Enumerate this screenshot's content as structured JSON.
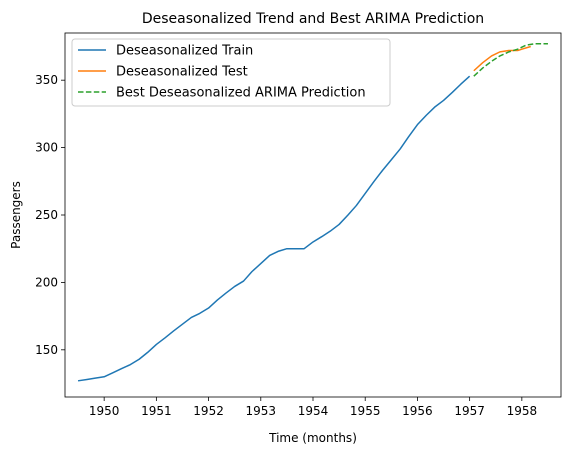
{
  "chart_data": {
    "type": "line",
    "title": "Deseasonalized Trend and Best ARIMA Prediction",
    "xlabel": "Time (months)",
    "ylabel": "Passengers",
    "xlim": [
      1949.25,
      1958.75
    ],
    "ylim": [
      115,
      385
    ],
    "x_ticks": [
      1950,
      1951,
      1952,
      1953,
      1954,
      1955,
      1956,
      1957,
      1958
    ],
    "x_tick_labels": [
      "1950",
      "1951",
      "1952",
      "1953",
      "1954",
      "1955",
      "1956",
      "1957",
      "1958"
    ],
    "y_ticks": [
      150,
      200,
      250,
      300,
      350
    ],
    "y_tick_labels": [
      "150",
      "200",
      "250",
      "300",
      "350"
    ],
    "grid": false,
    "legend_position": "top-left",
    "series": [
      {
        "name": "Deseasonalized Train",
        "color": "#1f77b4",
        "style": "solid",
        "x": [
          1949.5,
          1949.67,
          1949.83,
          1950.0,
          1950.17,
          1950.33,
          1950.5,
          1950.67,
          1950.83,
          1951.0,
          1951.17,
          1951.33,
          1951.5,
          1951.67,
          1951.83,
          1952.0,
          1952.17,
          1952.33,
          1952.5,
          1952.67,
          1952.83,
          1953.0,
          1953.17,
          1953.33,
          1953.5,
          1953.67,
          1953.83,
          1954.0,
          1954.17,
          1954.33,
          1954.5,
          1954.67,
          1954.83,
          1955.0,
          1955.17,
          1955.33,
          1955.5,
          1955.67,
          1955.83,
          1956.0,
          1956.17,
          1956.33,
          1956.5,
          1956.67,
          1956.83,
          1957.0
        ],
        "values": [
          127,
          128,
          129,
          130,
          133,
          136,
          139,
          143,
          148,
          154,
          159,
          164,
          169,
          174,
          177,
          181,
          187,
          192,
          197,
          201,
          208,
          214,
          220,
          223,
          225,
          225,
          225,
          230,
          234,
          238,
          243,
          250,
          257,
          266,
          275,
          283,
          291,
          299,
          308,
          317,
          324,
          330,
          335,
          341,
          347,
          353
        ]
      },
      {
        "name": "Deseasonalized Test",
        "color": "#ff7f0e",
        "style": "solid",
        "x": [
          1957.08,
          1957.25,
          1957.42,
          1957.58,
          1957.75,
          1957.92,
          1958.0,
          1958.17
        ],
        "values": [
          357,
          363,
          368,
          371,
          372,
          372,
          373,
          375
        ]
      },
      {
        "name": "Best Deseasonalized ARIMA Prediction",
        "color": "#2ca02c",
        "style": "dashed",
        "x": [
          1957.08,
          1957.25,
          1957.42,
          1957.58,
          1957.75,
          1957.92,
          1958.08,
          1958.25,
          1958.42,
          1958.5
        ],
        "values": [
          353,
          359,
          364,
          368,
          371,
          373,
          376,
          377,
          377,
          377
        ]
      }
    ]
  }
}
